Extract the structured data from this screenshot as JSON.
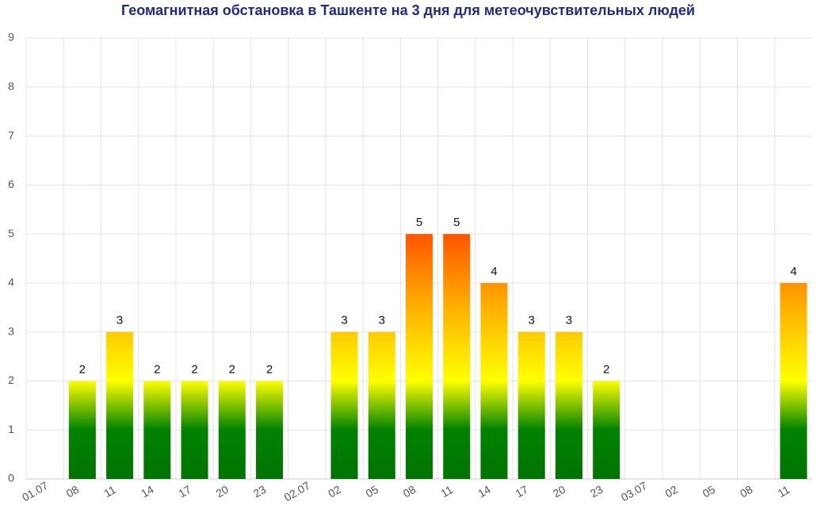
{
  "chart_data": {
    "type": "bar",
    "title": "Геомагнитная обстановка в Ташкенте на 3 дня для метеочувствительных людей",
    "categories": [
      "01.07",
      "08",
      "11",
      "14",
      "17",
      "20",
      "23",
      "02.07",
      "02",
      "05",
      "08",
      "11",
      "14",
      "17",
      "20",
      "23",
      "03.07",
      "02",
      "05",
      "08",
      "11"
    ],
    "values": [
      null,
      2,
      3,
      2,
      2,
      2,
      2,
      null,
      3,
      3,
      5,
      5,
      4,
      3,
      3,
      2,
      null,
      null,
      null,
      null,
      4
    ],
    "ylim": [
      0,
      9
    ],
    "yticks": [
      0,
      1,
      2,
      3,
      4,
      5,
      6,
      7,
      8,
      9
    ],
    "grid": true,
    "data_labels": true
  }
}
